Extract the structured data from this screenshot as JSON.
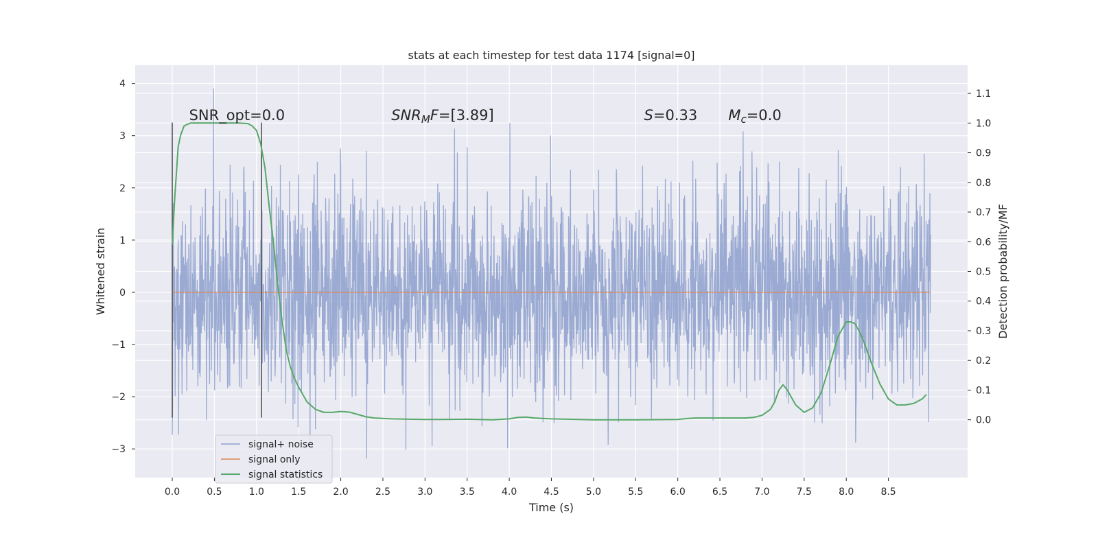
{
  "chart_data": {
    "type": "line",
    "title": "stats at each timestep for test data 1174 [signal=0]",
    "xlabel": "Time (s)",
    "ylabel": "Whitened strain",
    "y2label": "Detection probability/MF",
    "xlim": [
      -0.44,
      9.44
    ],
    "ylim": [
      -3.55,
      4.35
    ],
    "y2lim": [
      -0.195,
      1.195
    ],
    "xticks": [
      "0.0",
      "0.5",
      "1.0",
      "1.5",
      "2.0",
      "2.5",
      "3.0",
      "3.5",
      "4.0",
      "4.5",
      "5.0",
      "5.5",
      "6.0",
      "6.5",
      "7.0",
      "7.5",
      "8.0",
      "8.5"
    ],
    "yticks": [
      "−3",
      "−2",
      "−1",
      "0",
      "1",
      "2",
      "3",
      "4"
    ],
    "y2ticks": [
      "0.0",
      "0.1",
      "0.2",
      "0.3",
      "0.4",
      "0.5",
      "0.6",
      "0.7",
      "0.8",
      "0.9",
      "1.0",
      "1.1"
    ],
    "grid": true,
    "legend_position": "lower-left",
    "annotations": [
      {
        "x": 0.2,
        "y": 3.3,
        "text": "SNR_opt=0.0",
        "parts": [
          {
            "t": "SNR_opt=0.0"
          }
        ]
      },
      {
        "x": 2.6,
        "y": 3.3,
        "text": "SNRMF=[3.89]",
        "parts": [
          {
            "t": "SNR",
            "i": true
          },
          {
            "t": "M",
            "i": true,
            "sub": true
          },
          {
            "t": "F",
            "i": true
          },
          {
            "t": "=[3.89]"
          }
        ]
      },
      {
        "x": 5.6,
        "y": 3.3,
        "text": "S=0.33",
        "parts": [
          {
            "t": "S",
            "i": true
          },
          {
            "t": "=0.33"
          }
        ]
      },
      {
        "x": 6.6,
        "y": 3.3,
        "text": "Mc=0.0",
        "parts": [
          {
            "t": "M",
            "i": true
          },
          {
            "t": "c",
            "i": true,
            "sub": true
          },
          {
            "t": "=0.0"
          }
        ]
      }
    ],
    "vlines": [
      {
        "x": 0.0,
        "ymin": -2.4,
        "ymax": 3.25
      },
      {
        "x": 1.06,
        "ymin": -2.4,
        "ymax": 3.25
      }
    ],
    "series": [
      {
        "name": "signal+ noise",
        "color": "#8c9fcc",
        "kind": "noise",
        "x_range": [
          0,
          9.0
        ],
        "values_note": "",
        "range": [
          -3.2,
          4.0
        ]
      },
      {
        "name": "signal only",
        "color": "#dd8452",
        "kind": "flat",
        "x": [
          0,
          9.0
        ],
        "values": [
          0,
          0
        ]
      },
      {
        "name": "signal statistics",
        "color": "#55a868",
        "axis": "right",
        "x": [
          0,
          0.03,
          0.07,
          0.1,
          0.14,
          0.18,
          0.22,
          0.3,
          0.4,
          0.5,
          0.6,
          0.7,
          0.8,
          0.9,
          0.95,
          1.0,
          1.05,
          1.1,
          1.15,
          1.2,
          1.25,
          1.3,
          1.35,
          1.4,
          1.45,
          1.5,
          1.6,
          1.7,
          1.8,
          1.9,
          2.0,
          2.1,
          2.2,
          2.3,
          2.4,
          2.6,
          2.8,
          3.0,
          3.2,
          3.5,
          3.8,
          4.0,
          4.1,
          4.2,
          4.3,
          4.5,
          5.0,
          5.5,
          6.0,
          6.1,
          6.2,
          6.5,
          6.8,
          6.9,
          7.0,
          7.1,
          7.15,
          7.2,
          7.25,
          7.3,
          7.35,
          7.4,
          7.5,
          7.6,
          7.7,
          7.8,
          7.9,
          8.0,
          8.05,
          8.1,
          8.15,
          8.2,
          8.3,
          8.4,
          8.5,
          8.6,
          8.7,
          8.8,
          8.9,
          8.95
        ],
        "values": [
          0.59,
          0.75,
          0.92,
          0.96,
          0.99,
          0.996,
          1.0,
          1.0,
          1.0,
          1.0,
          1.0,
          1.0,
          1.0,
          0.998,
          0.99,
          0.975,
          0.93,
          0.85,
          0.72,
          0.6,
          0.46,
          0.34,
          0.24,
          0.18,
          0.14,
          0.11,
          0.06,
          0.035,
          0.025,
          0.025,
          0.028,
          0.026,
          0.018,
          0.01,
          0.006,
          0.003,
          0.002,
          0.001,
          0.001,
          0.002,
          0.0,
          0.003,
          0.008,
          0.009,
          0.006,
          0.003,
          0.0,
          0.0,
          0.001,
          0.004,
          0.006,
          0.006,
          0.006,
          0.008,
          0.015,
          0.035,
          0.06,
          0.1,
          0.118,
          0.1,
          0.075,
          0.05,
          0.025,
          0.04,
          0.09,
          0.18,
          0.28,
          0.33,
          0.33,
          0.325,
          0.3,
          0.27,
          0.19,
          0.12,
          0.07,
          0.05,
          0.05,
          0.055,
          0.07,
          0.085
        ]
      }
    ]
  }
}
